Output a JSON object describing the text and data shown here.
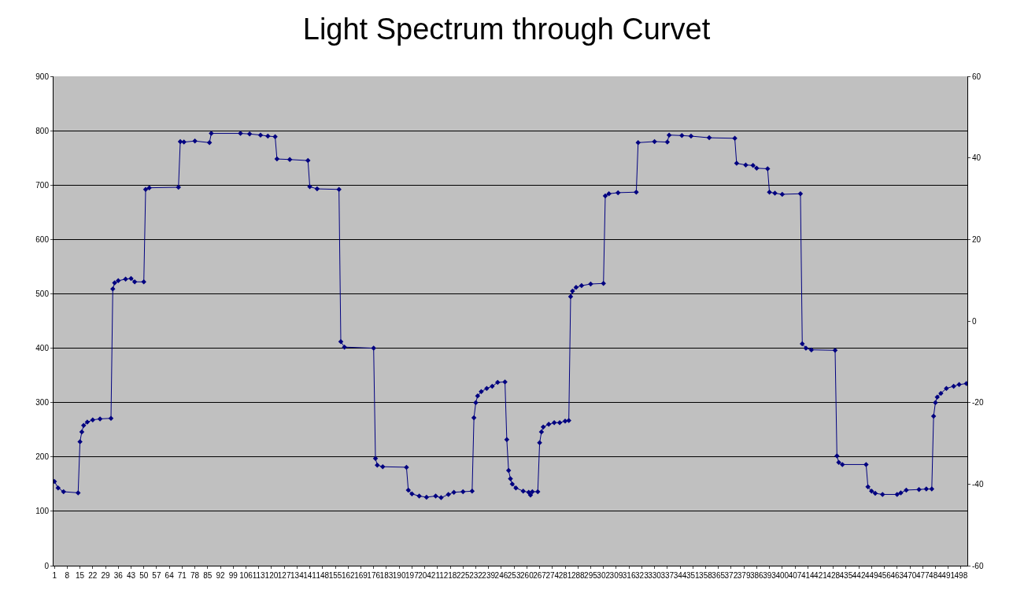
{
  "chart_data": {
    "type": "line",
    "title": "Light Spectrum through Curvet",
    "series": [
      {
        "color": "#000080",
        "x": [
          1,
          3,
          6,
          14,
          15,
          16,
          17,
          19,
          22,
          26,
          32,
          33,
          34,
          36,
          40,
          43,
          45,
          50,
          51,
          53,
          69,
          70,
          72,
          78,
          86,
          87,
          103,
          108,
          114,
          118,
          122,
          123,
          130,
          140,
          141,
          145,
          157,
          158,
          160,
          176,
          177,
          178,
          181,
          194,
          195,
          197,
          201,
          205,
          210,
          213,
          217,
          220,
          225,
          230,
          231,
          232,
          233,
          235,
          238,
          241,
          244,
          248,
          249,
          250,
          251,
          252,
          254,
          258,
          261,
          262,
          263,
          266,
          267,
          268,
          269,
          272,
          275,
          278,
          281,
          283,
          284,
          285,
          287,
          290,
          295,
          302,
          303,
          305,
          310,
          320,
          321,
          330,
          337,
          338,
          345,
          350,
          360,
          374,
          375,
          380,
          384,
          386,
          392,
          393,
          396,
          400,
          410,
          411,
          413,
          416,
          429,
          430,
          431,
          433,
          446,
          447,
          449,
          451,
          455,
          463,
          465,
          468,
          475,
          479,
          482,
          483,
          484,
          485,
          487,
          490,
          494,
          497,
          501
        ],
        "values": [
          155,
          143,
          136,
          134,
          228,
          246,
          258,
          264,
          268,
          270,
          271,
          509,
          520,
          524,
          527,
          528,
          522,
          522,
          692,
          695,
          696,
          780,
          779,
          781,
          778,
          795,
          795,
          794,
          792,
          790,
          789,
          748,
          747,
          745,
          697,
          693,
          692,
          412,
          402,
          400,
          197,
          185,
          182,
          181,
          139,
          132,
          128,
          126,
          128,
          125,
          131,
          135,
          136,
          137,
          272,
          300,
          312,
          320,
          326,
          330,
          337,
          338,
          232,
          175,
          160,
          150,
          143,
          137,
          135,
          130,
          136,
          136,
          226,
          246,
          255,
          260,
          263,
          263,
          266,
          267,
          495,
          505,
          512,
          515,
          518,
          519,
          680,
          684,
          686,
          687,
          778,
          780,
          779,
          792,
          791,
          790,
          787,
          786,
          740,
          737,
          736,
          731,
          730,
          687,
          685,
          683,
          684,
          408,
          400,
          397,
          396,
          202,
          190,
          186,
          186,
          145,
          137,
          133,
          131,
          131,
          134,
          139,
          140,
          141,
          141,
          275,
          300,
          310,
          317,
          326,
          330,
          333,
          335
        ]
      }
    ],
    "xlim": [
      0.5,
      501.5
    ],
    "xticks": [
      1,
      8,
      15,
      22,
      29,
      36,
      43,
      50,
      57,
      64,
      71,
      78,
      85,
      92,
      99,
      106,
      113,
      120,
      127,
      134,
      141,
      148,
      155,
      162,
      169,
      176,
      183,
      190,
      197,
      204,
      211,
      218,
      225,
      232,
      239,
      246,
      253,
      260,
      267,
      274,
      281,
      288,
      295,
      302,
      309,
      316,
      323,
      330,
      337,
      344,
      351,
      358,
      365,
      372,
      379,
      386,
      393,
      400,
      407,
      414,
      421,
      428,
      435,
      442,
      449,
      456,
      463,
      470,
      477,
      484,
      491,
      498
    ],
    "ylim": [
      0,
      900
    ],
    "yticks": [
      0,
      100,
      200,
      300,
      400,
      500,
      600,
      700,
      800,
      900
    ],
    "y2lim": [
      -60,
      60
    ],
    "y2ticks": [
      -60,
      -40,
      -20,
      0,
      20,
      40,
      60
    ],
    "grid": "y",
    "marker": "diamond",
    "line_style": "solid"
  }
}
